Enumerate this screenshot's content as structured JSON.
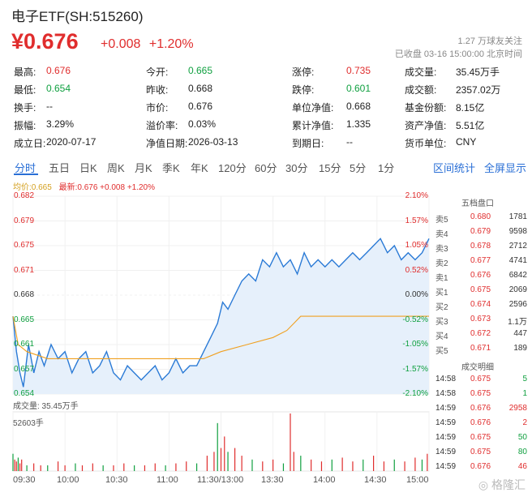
{
  "header": {
    "title": "电子ETF(SH:515260)",
    "price": "¥0.676",
    "change": "+0.008",
    "change_pct": "+1.20%",
    "followers": "1.27 万球友关注",
    "status": "已收盘 03-16 15:00:00 北京时间"
  },
  "stats": [
    {
      "label": "最高:",
      "value": "0.676",
      "color": "red"
    },
    {
      "label": "今开:",
      "value": "0.665",
      "color": "green"
    },
    {
      "label": "涨停:",
      "value": "0.735",
      "color": "red"
    },
    {
      "label": "成交量:",
      "value": "35.45万手",
      "color": "black"
    },
    {
      "label": "最低:",
      "value": "0.654",
      "color": "green"
    },
    {
      "label": "昨收:",
      "value": "0.668",
      "color": "black"
    },
    {
      "label": "跌停:",
      "value": "0.601",
      "color": "green"
    },
    {
      "label": "成交额:",
      "value": "2357.02万",
      "color": "black"
    },
    {
      "label": "换手:",
      "value": "--",
      "color": "black"
    },
    {
      "label": "市价:",
      "value": "0.676",
      "color": "black"
    },
    {
      "label": "单位净值:",
      "value": "0.668",
      "color": "black"
    },
    {
      "label": "基金份额:",
      "value": "8.15亿",
      "color": "black"
    },
    {
      "label": "振幅:",
      "value": "3.29%",
      "color": "black"
    },
    {
      "label": "溢价率:",
      "value": "0.03%",
      "color": "black"
    },
    {
      "label": "累计净值:",
      "value": "1.335",
      "color": "black"
    },
    {
      "label": "资产净值:",
      "value": "5.51亿",
      "color": "black"
    },
    {
      "label": "成立日:",
      "value": "2020-07-17",
      "color": "black"
    },
    {
      "label": "净值日期:",
      "value": "2026-03-13",
      "color": "black"
    },
    {
      "label": "到期日:",
      "value": "--",
      "color": "black"
    },
    {
      "label": "货币单位:",
      "value": "CNY",
      "color": "black"
    }
  ],
  "tabs": [
    "分时",
    "五日",
    "日K",
    "周K",
    "月K",
    "季K",
    "年K",
    "120分",
    "60分",
    "30分",
    "15分",
    "5分",
    "1分"
  ],
  "active_tab": "分时",
  "links": {
    "interval": "区间统计",
    "fullscreen": "全屏显示"
  },
  "legend": {
    "avg": "均价:0.665",
    "last": "最新:0.676 +0.008 +1.20%"
  },
  "volume": {
    "label": "成交量: 35.45万手",
    "max_label": "52603手"
  },
  "colors": {
    "up": "#e02d2d",
    "down": "#10a040",
    "line": "#2a7ad6",
    "avg": "#f0a020",
    "fill": "#e6f0fb"
  },
  "order_book": {
    "title": "五档盘口",
    "asks": [
      {
        "label": "卖5",
        "price": "0.680",
        "vol": "1781"
      },
      {
        "label": "卖4",
        "price": "0.679",
        "vol": "9598"
      },
      {
        "label": "卖3",
        "price": "0.678",
        "vol": "2712"
      },
      {
        "label": "卖2",
        "price": "0.677",
        "vol": "4741"
      },
      {
        "label": "卖1",
        "price": "0.676",
        "vol": "6842"
      }
    ],
    "bids": [
      {
        "label": "买1",
        "price": "0.675",
        "vol": "2069"
      },
      {
        "label": "买2",
        "price": "0.674",
        "vol": "2596"
      },
      {
        "label": "买3",
        "price": "0.673",
        "vol": "1.1万"
      },
      {
        "label": "买4",
        "price": "0.672",
        "vol": "447"
      },
      {
        "label": "买5",
        "price": "0.671",
        "vol": "189"
      }
    ]
  },
  "trades": {
    "title": "成交明细",
    "rows": [
      {
        "time": "14:58",
        "price": "0.675",
        "vol": "5",
        "dir": "down"
      },
      {
        "time": "14:58",
        "price": "0.675",
        "vol": "1",
        "dir": "down"
      },
      {
        "time": "14:59",
        "price": "0.676",
        "vol": "2958",
        "dir": "up"
      },
      {
        "time": "14:59",
        "price": "0.676",
        "vol": "2",
        "dir": "up"
      },
      {
        "time": "14:59",
        "price": "0.675",
        "vol": "50",
        "dir": "down"
      },
      {
        "time": "14:59",
        "price": "0.675",
        "vol": "80",
        "dir": "down"
      },
      {
        "time": "14:59",
        "price": "0.676",
        "vol": "46",
        "dir": "up"
      }
    ]
  },
  "chart_data": {
    "type": "line",
    "prev_close": 0.668,
    "ylim": [
      0.654,
      0.682
    ],
    "y_ticks_left": [
      "0.682",
      "0.679",
      "0.675",
      "0.671",
      "0.668",
      "0.665",
      "0.661",
      "0.657",
      "0.654"
    ],
    "y_ticks_right": [
      "2.10%",
      "1.57%",
      "1.05%",
      "0.52%",
      "0.00%",
      "-0.52%",
      "-1.05%",
      "-1.57%",
      "-2.10%"
    ],
    "x_ticks": [
      "09:30",
      "10:00",
      "10:30",
      "11:00",
      "11:30/13:00",
      "13:30",
      "14:00",
      "14:30",
      "15:00"
    ],
    "price_points": [
      [
        0,
        0.665
      ],
      [
        2,
        0.66
      ],
      [
        4,
        0.657
      ],
      [
        6,
        0.655
      ],
      [
        9,
        0.661
      ],
      [
        12,
        0.657
      ],
      [
        15,
        0.66
      ],
      [
        18,
        0.658
      ],
      [
        22,
        0.661
      ],
      [
        26,
        0.659
      ],
      [
        30,
        0.66
      ],
      [
        34,
        0.657
      ],
      [
        38,
        0.659
      ],
      [
        42,
        0.66
      ],
      [
        46,
        0.657
      ],
      [
        50,
        0.658
      ],
      [
        54,
        0.66
      ],
      [
        58,
        0.657
      ],
      [
        62,
        0.656
      ],
      [
        66,
        0.658
      ],
      [
        70,
        0.657
      ],
      [
        74,
        0.656
      ],
      [
        78,
        0.657
      ],
      [
        82,
        0.658
      ],
      [
        86,
        0.656
      ],
      [
        90,
        0.657
      ],
      [
        94,
        0.659
      ],
      [
        98,
        0.657
      ],
      [
        102,
        0.658
      ],
      [
        106,
        0.658
      ],
      [
        110,
        0.66
      ],
      [
        114,
        0.662
      ],
      [
        118,
        0.664
      ],
      [
        121,
        0.667
      ],
      [
        124,
        0.666
      ],
      [
        128,
        0.668
      ],
      [
        132,
        0.67
      ],
      [
        136,
        0.671
      ],
      [
        140,
        0.67
      ],
      [
        144,
        0.673
      ],
      [
        148,
        0.672
      ],
      [
        152,
        0.674
      ],
      [
        156,
        0.672
      ],
      [
        160,
        0.673
      ],
      [
        164,
        0.671
      ],
      [
        168,
        0.674
      ],
      [
        172,
        0.672
      ],
      [
        176,
        0.673
      ],
      [
        180,
        0.672
      ],
      [
        184,
        0.673
      ],
      [
        188,
        0.672
      ],
      [
        192,
        0.673
      ],
      [
        196,
        0.674
      ],
      [
        200,
        0.673
      ],
      [
        204,
        0.674
      ],
      [
        208,
        0.675
      ],
      [
        212,
        0.676
      ],
      [
        216,
        0.674
      ],
      [
        220,
        0.675
      ],
      [
        224,
        0.673
      ],
      [
        228,
        0.674
      ],
      [
        232,
        0.673
      ],
      [
        236,
        0.674
      ],
      [
        240,
        0.676
      ]
    ],
    "avg_points": [
      [
        0,
        0.665
      ],
      [
        3,
        0.661
      ],
      [
        8,
        0.66
      ],
      [
        20,
        0.659
      ],
      [
        60,
        0.659
      ],
      [
        100,
        0.659
      ],
      [
        110,
        0.659
      ],
      [
        120,
        0.66
      ],
      [
        135,
        0.661
      ],
      [
        150,
        0.662
      ],
      [
        158,
        0.663
      ],
      [
        162,
        0.664
      ],
      [
        166,
        0.665
      ],
      [
        240,
        0.665
      ]
    ],
    "volume_bars": [
      [
        0,
        9
      ],
      [
        1,
        6
      ],
      [
        2,
        5
      ],
      [
        3,
        7
      ],
      [
        4,
        4
      ],
      [
        5,
        6
      ],
      [
        8,
        3
      ],
      [
        12,
        4
      ],
      [
        16,
        3
      ],
      [
        20,
        3
      ],
      [
        26,
        5
      ],
      [
        30,
        3
      ],
      [
        36,
        4
      ],
      [
        40,
        3
      ],
      [
        46,
        4
      ],
      [
        52,
        3
      ],
      [
        58,
        3
      ],
      [
        64,
        4
      ],
      [
        70,
        3
      ],
      [
        76,
        3
      ],
      [
        82,
        4
      ],
      [
        88,
        3
      ],
      [
        94,
        4
      ],
      [
        100,
        5
      ],
      [
        106,
        4
      ],
      [
        112,
        8
      ],
      [
        116,
        10
      ],
      [
        118,
        25
      ],
      [
        120,
        12
      ],
      [
        122,
        18
      ],
      [
        124,
        10
      ],
      [
        128,
        12
      ],
      [
        132,
        8
      ],
      [
        138,
        6
      ],
      [
        144,
        5
      ],
      [
        150,
        6
      ],
      [
        156,
        4
      ],
      [
        160,
        30
      ],
      [
        162,
        10
      ],
      [
        166,
        8
      ],
      [
        172,
        6
      ],
      [
        178,
        5
      ],
      [
        184,
        6
      ],
      [
        190,
        7
      ],
      [
        196,
        5
      ],
      [
        202,
        6
      ],
      [
        208,
        8
      ],
      [
        214,
        5
      ],
      [
        220,
        6
      ],
      [
        226,
        5
      ],
      [
        232,
        7
      ],
      [
        236,
        6
      ],
      [
        239,
        9
      ]
    ]
  }
}
